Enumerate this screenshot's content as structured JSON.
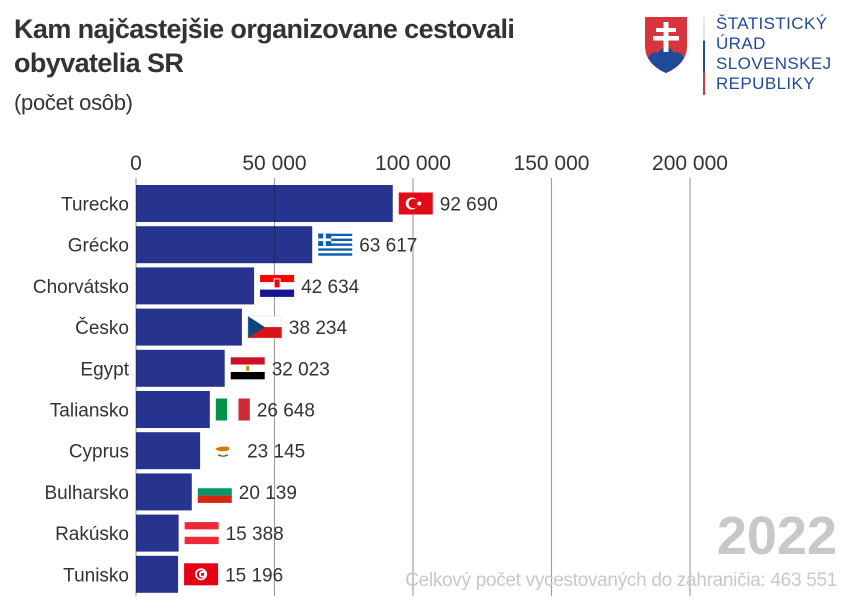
{
  "header": {
    "title": "Kam najčastejšie organizovane cestovali obyvatelia SR",
    "subtitle": "(počet osôb)"
  },
  "logo": {
    "lines": [
      "ŠTATISTICKÝ",
      "ÚRAD",
      "SLOVENSKEJ",
      "REPUBLIKY"
    ],
    "icon": "slovak-coat-of-arms-icon"
  },
  "footer": {
    "year": "2022",
    "total_label": "Celkový počet vycestovaných do zahraničia: 463 551"
  },
  "colors": {
    "bar": "#27348f",
    "grid": "#cfcfcf",
    "muted": "#c8c8c8"
  },
  "chart_data": {
    "type": "bar",
    "orientation": "horizontal",
    "title": "Kam najčastejšie organizovane cestovali obyvatelia SR",
    "subtitle": "(počet osôb)",
    "xlim": [
      0,
      200000
    ],
    "x_ticks": [
      0,
      50000,
      100000,
      150000,
      200000
    ],
    "x_tick_labels": [
      "0",
      "50 000",
      "100 000",
      "150 000",
      "200 000"
    ],
    "grid": true,
    "categories": [
      "Turecko",
      "Grécko",
      "Chorvátsko",
      "Česko",
      "Egypt",
      "Taliansko",
      "Cyprus",
      "Bulharsko",
      "Rakúsko",
      "Tunisko"
    ],
    "values": [
      92690,
      63617,
      42634,
      38234,
      32023,
      26648,
      23145,
      20139,
      15388,
      15196
    ],
    "value_labels": [
      "92 690",
      "63 617",
      "42 634",
      "38 234",
      "32 023",
      "26 648",
      "23 145",
      "20 139",
      "15 388",
      "15 196"
    ],
    "flags": [
      "turkey-flag-icon",
      "greece-flag-icon",
      "croatia-flag-icon",
      "czechia-flag-icon",
      "egypt-flag-icon",
      "italy-flag-icon",
      "cyprus-flag-icon",
      "bulgaria-flag-icon",
      "austria-flag-icon",
      "tunisia-flag-icon"
    ]
  }
}
